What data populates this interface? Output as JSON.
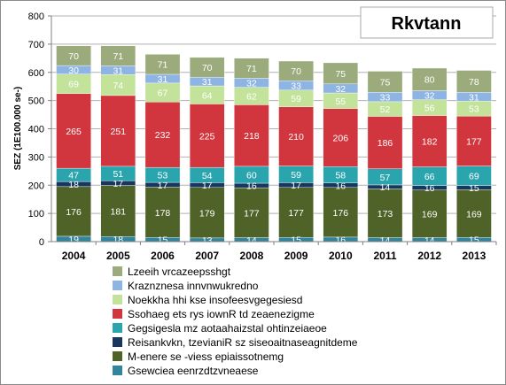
{
  "chart_data": {
    "type": "bar",
    "stacked": true,
    "title": "Rkvtann",
    "ylabel": "SEZ (1E100.000 se-)",
    "xlabel": "",
    "ylim": [
      0,
      800
    ],
    "yticks": [
      0,
      100,
      200,
      300,
      400,
      500,
      600,
      700,
      800
    ],
    "grid": true,
    "legend_position": "bottom",
    "categories": [
      "2004",
      "2005",
      "2006",
      "2007",
      "2008",
      "2009",
      "2010",
      "2011",
      "2012",
      "2013"
    ],
    "series": [
      {
        "name": "Gsewciea eenrzdtzvneaese",
        "color": "#31859c",
        "values": [
          19,
          18,
          15,
          13,
          14,
          15,
          16,
          14,
          14,
          15
        ],
        "show_labels": true
      },
      {
        "name": "M-enere se -viess epiaissotnemg",
        "color": "#4f6228",
        "values": [
          176,
          181,
          178,
          179,
          177,
          177,
          176,
          173,
          169,
          169
        ],
        "show_labels": true
      },
      {
        "name": "Reisankvkn, tzevianiR sz siseoaitnaseagnitdeme",
        "color": "#17375e",
        "values": [
          18,
          17,
          17,
          17,
          16,
          17,
          16,
          14,
          16,
          15
        ],
        "show_labels": true
      },
      {
        "name": "Gegsigesla mz aotaahaizstal ohtinzeiaeoe",
        "color": "#2aa5ae",
        "values": [
          47,
          51,
          53,
          54,
          60,
          59,
          58,
          57,
          66,
          69
        ],
        "show_labels": true
      },
      {
        "name": "Ssohaeg ets rys iownR td zeaenezigme",
        "color": "#d1353d",
        "values": [
          265,
          251,
          232,
          225,
          218,
          210,
          206,
          186,
          182,
          177
        ],
        "show_labels": true
      },
      {
        "name": "Noekkha hhi kse insofeesvgegesiesd",
        "color": "#c3e39b",
        "values": [
          69,
          74,
          67,
          64,
          62,
          59,
          55,
          52,
          56,
          53
        ],
        "show_labels": true
      },
      {
        "name": "Kraznznesa innvnwukredno",
        "color": "#8db4e2",
        "values": [
          30,
          31,
          31,
          31,
          32,
          33,
          32,
          33,
          32,
          31
        ],
        "show_labels": true
      },
      {
        "name": "Lzeeih vrcazeepsshgt",
        "color": "#9bab7c",
        "values": [
          70,
          71,
          71,
          70,
          71,
          70,
          75,
          75,
          80,
          78
        ],
        "show_labels": true
      }
    ]
  }
}
